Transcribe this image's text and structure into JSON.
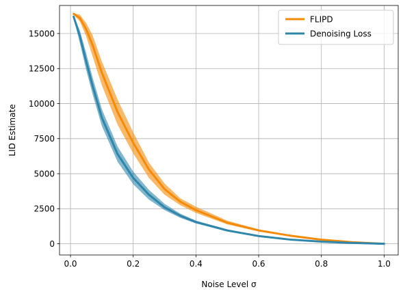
{
  "chart_data": {
    "type": "line",
    "xlabel": "Noise Level σ",
    "ylabel": "LID Estimate",
    "xlim": [
      -0.035,
      1.045
    ],
    "ylim": [
      -800,
      17000
    ],
    "grid": true,
    "legend_position": "top-right",
    "xticks": [
      0.0,
      0.2,
      0.4,
      0.6,
      0.8,
      1.0
    ],
    "xtick_labels": [
      "0.0",
      "0.2",
      "0.4",
      "0.6",
      "0.8",
      "1.0"
    ],
    "yticks": [
      0,
      2500,
      5000,
      7500,
      10000,
      12500,
      15000
    ],
    "ytick_labels": [
      "0",
      "2500",
      "5000",
      "7500",
      "10000",
      "12500",
      "15000"
    ],
    "series": [
      {
        "name": "FLIPD",
        "color": "#f58a07",
        "x": [
          0.01,
          0.03,
          0.05,
          0.07,
          0.1,
          0.15,
          0.2,
          0.25,
          0.3,
          0.35,
          0.4,
          0.5,
          0.6,
          0.7,
          0.8,
          0.9,
          1.0
        ],
        "y": [
          16400,
          16100,
          15300,
          14200,
          12200,
          9400,
          7200,
          5300,
          3900,
          3000,
          2400,
          1500,
          950,
          580,
          290,
          110,
          0
        ],
        "band_lower": [
          16350,
          15850,
          14800,
          13400,
          11300,
          8500,
          6450,
          4700,
          3500,
          2750,
          2200,
          1380,
          880,
          540,
          270,
          100,
          0
        ],
        "band_upper": [
          16450,
          16350,
          15750,
          14900,
          13000,
          10300,
          7950,
          5800,
          4300,
          3250,
          2650,
          1650,
          1030,
          630,
          320,
          120,
          0
        ]
      },
      {
        "name": "Denoising Loss",
        "color": "#2e86ab",
        "x": [
          0.01,
          0.03,
          0.05,
          0.07,
          0.1,
          0.15,
          0.2,
          0.25,
          0.3,
          0.35,
          0.4,
          0.5,
          0.6,
          0.7,
          0.8,
          0.9,
          1.0
        ],
        "y": [
          16200,
          14800,
          13000,
          11300,
          9000,
          6400,
          4700,
          3500,
          2600,
          2000,
          1550,
          950,
          550,
          300,
          150,
          60,
          0
        ],
        "band_lower": [
          16100,
          14300,
          12400,
          10700,
          8400,
          5850,
          4250,
          3150,
          2400,
          1850,
          1450,
          880,
          510,
          280,
          140,
          55,
          0
        ],
        "band_upper": [
          16300,
          15200,
          13600,
          11900,
          9600,
          6950,
          5150,
          3850,
          2850,
          2150,
          1650,
          1020,
          590,
          320,
          160,
          65,
          0
        ]
      }
    ]
  }
}
